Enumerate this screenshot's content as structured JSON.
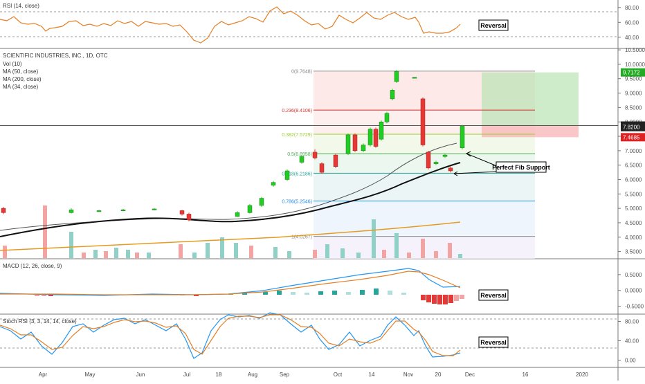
{
  "symbol_line": "SCIENTIFIC INDUSTRIES, INC., 1D, OTC",
  "overlay_labels": [
    "Vol (10)",
    "MA (50, close)",
    "MA (200, close)",
    "MA (34, close)"
  ],
  "rsi_label": "RSI (14, close)",
  "macd_label": "MACD (12, 26, close, 9)",
  "stoch_label": "Stoch RSI (3, 3, 14, 14, close)",
  "annotations": {
    "reversal_rsi": "Reversal",
    "reversal_macd": "Reversal",
    "reversal_stoch": "Reversal",
    "fib_support": "Perfect Fib Support"
  },
  "price_badges": [
    {
      "value": "9.7172",
      "color": "#22aa22"
    },
    {
      "value": "7.8728",
      "color": "#222222"
    },
    {
      "value": "7.8200",
      "color": "#222222"
    },
    {
      "value": "7.4685",
      "color": "#dd2222"
    }
  ],
  "x_axis_labels": [
    "Apr",
    "May",
    "Jun",
    "Jul",
    "18",
    "Aug",
    "Sep",
    "Oct",
    "14",
    "Nov",
    "20",
    "Dec",
    "16",
    "2020"
  ],
  "chart_data": {
    "type": "candlestick",
    "price_axis": {
      "ticks": [
        "10.5000",
        "10.0000",
        "9.5000",
        "9.0000",
        "8.5000",
        "8.0000",
        "7.5000",
        "7.0000",
        "6.5000",
        "6.0000",
        "5.5000",
        "5.0000",
        "4.5000",
        "4.0000",
        "3.5000"
      ],
      "range": [
        3.25,
        10.55
      ]
    },
    "rsi_axis": {
      "ticks": [
        "80.00",
        "60.00",
        "40.00"
      ],
      "range": [
        25,
        90
      ]
    },
    "macd_axis": {
      "ticks": [
        "0.5000",
        "0.0000",
        "-0.5000"
      ],
      "range": [
        -0.75,
        1.0
      ]
    },
    "stoch_axis": {
      "ticks": [
        "80.00",
        "40.00",
        "0.00"
      ],
      "range": [
        -15,
        95
      ]
    },
    "fib_levels": [
      {
        "ratio": "0",
        "price": 9.7648,
        "label": "0(9.7648)",
        "color": "#888888"
      },
      {
        "ratio": "0.236",
        "price": 8.4106,
        "label": "0.236(8.4106)",
        "color": "#d32f2f"
      },
      {
        "ratio": "0.382",
        "price": 7.5729,
        "label": "0.382(7.5729)",
        "color": "#9acd32"
      },
      {
        "ratio": "0.5",
        "price": 6.8958,
        "label": "0.5(6.8958)",
        "color": "#4caf50"
      },
      {
        "ratio": "0.618",
        "price": 6.2186,
        "label": "0.618(6.2186)",
        "color": "#26a69a"
      },
      {
        "ratio": "0.786",
        "price": 5.2546,
        "label": "0.786(5.2546)",
        "color": "#1e88e5"
      },
      {
        "ratio": "1",
        "price": 4.0267,
        "label": "1(4.0267)",
        "color": "#888888"
      }
    ],
    "target_box": {
      "top": 9.7172,
      "entry": 7.8728,
      "stop": 7.4685
    }
  }
}
